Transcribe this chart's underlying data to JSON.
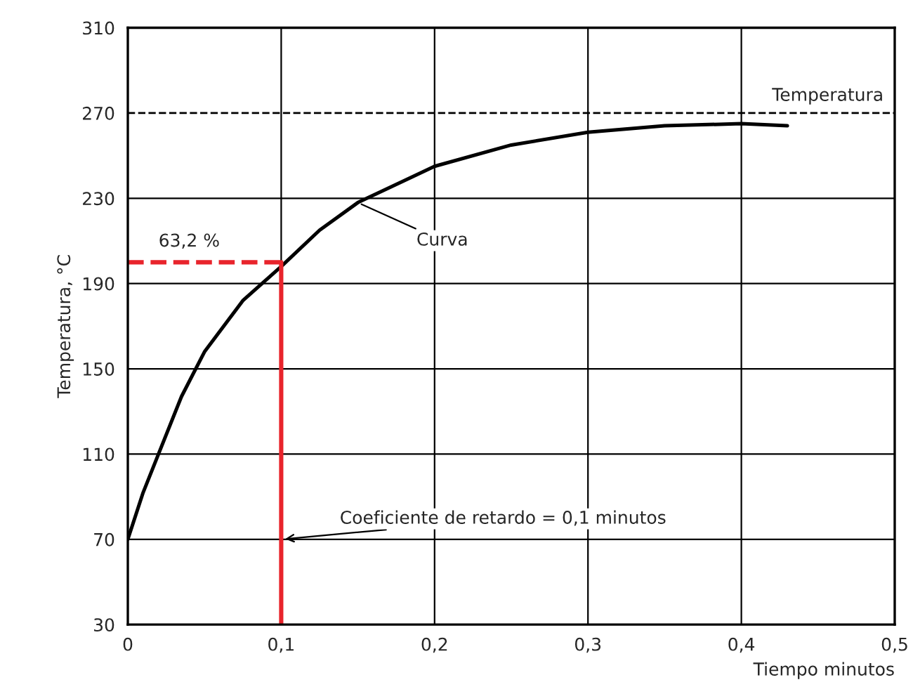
{
  "chart_data": {
    "type": "line",
    "xlabel": "Tiempo minutos",
    "ylabel": "Temperatura, °C",
    "xlim": [
      0,
      0.5
    ],
    "ylim": [
      30,
      310
    ],
    "xticks": [
      0,
      {
        "value": 0.1,
        "label": "0,1"
      },
      {
        "value": 0.2,
        "label": "0,2"
      },
      {
        "value": 0.3,
        "label": "0,3"
      },
      {
        "value": 0.4,
        "label": "0,4"
      },
      {
        "value": 0.5,
        "label": "0,5"
      }
    ],
    "yticks": [
      30,
      70,
      110,
      150,
      190,
      230,
      270,
      310
    ],
    "grid": true,
    "legend": false,
    "series": [
      {
        "color": "#000000",
        "x": [
          0,
          0.01,
          0.02,
          0.035,
          0.05,
          0.075,
          0.1,
          0.125,
          0.15,
          0.2,
          0.25,
          0.3,
          0.35,
          0.4,
          0.43
        ],
        "values": [
          70,
          92,
          110,
          137,
          158,
          182,
          198,
          215,
          228,
          245,
          255,
          261,
          264,
          265,
          264
        ]
      },
      {
        "color": "#e8242c",
        "line_style": "dashed",
        "x": [
          0,
          0.1
        ],
        "values": [
          200,
          200
        ]
      },
      {
        "color": "#e8242c",
        "line_style": "solid",
        "x": [
          0.1,
          0.1
        ],
        "values": [
          200,
          30
        ]
      }
    ],
    "ref_lines": [
      {
        "axis": "y",
        "value": 270,
        "label": "Temperatura",
        "color": "#000000",
        "line_style": "dashed"
      }
    ],
    "annotations": [
      {
        "text": "63,2 %",
        "x": 0.02,
        "y": 200
      },
      {
        "text": "Curva",
        "x": 0.15,
        "y": 228
      },
      {
        "text": "Coeficiente de retardo = 0,1 minutos",
        "x": 0.1,
        "y": 70
      }
    ]
  }
}
